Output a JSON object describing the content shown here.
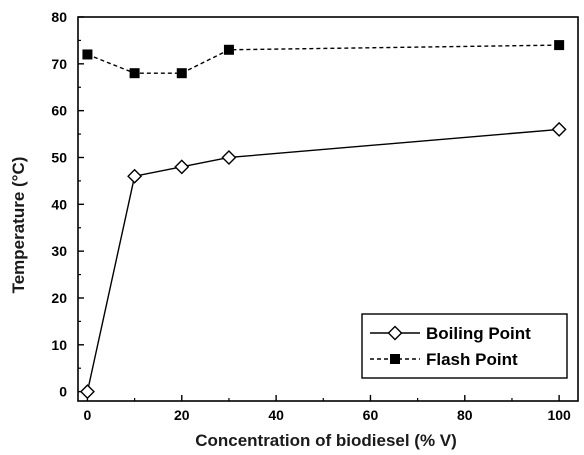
{
  "chart_data": {
    "type": "line",
    "xlabel": "Concentration of biodiesel (% V)",
    "ylabel": "Temperature (°C)",
    "xlim": [
      -2,
      104
    ],
    "ylim": [
      -2,
      80
    ],
    "x_ticks": [
      0,
      20,
      40,
      60,
      80,
      100
    ],
    "y_ticks": [
      0,
      10,
      20,
      30,
      40,
      50,
      60,
      70,
      80
    ],
    "grid": false,
    "legend_position": "bottom-right",
    "series": [
      {
        "name": "Boiling Point",
        "x": [
          0,
          10,
          20,
          30,
          100
        ],
        "y": [
          0,
          46,
          48,
          50,
          56
        ],
        "marker": "open-diamond",
        "line_style": "solid",
        "color": "#000000"
      },
      {
        "name": "Flash Point",
        "x": [
          0,
          10,
          20,
          30,
          100
        ],
        "y": [
          72,
          68,
          68,
          73,
          74
        ],
        "marker": "filled-square",
        "line_style": "dashed",
        "color": "#000000"
      }
    ]
  }
}
